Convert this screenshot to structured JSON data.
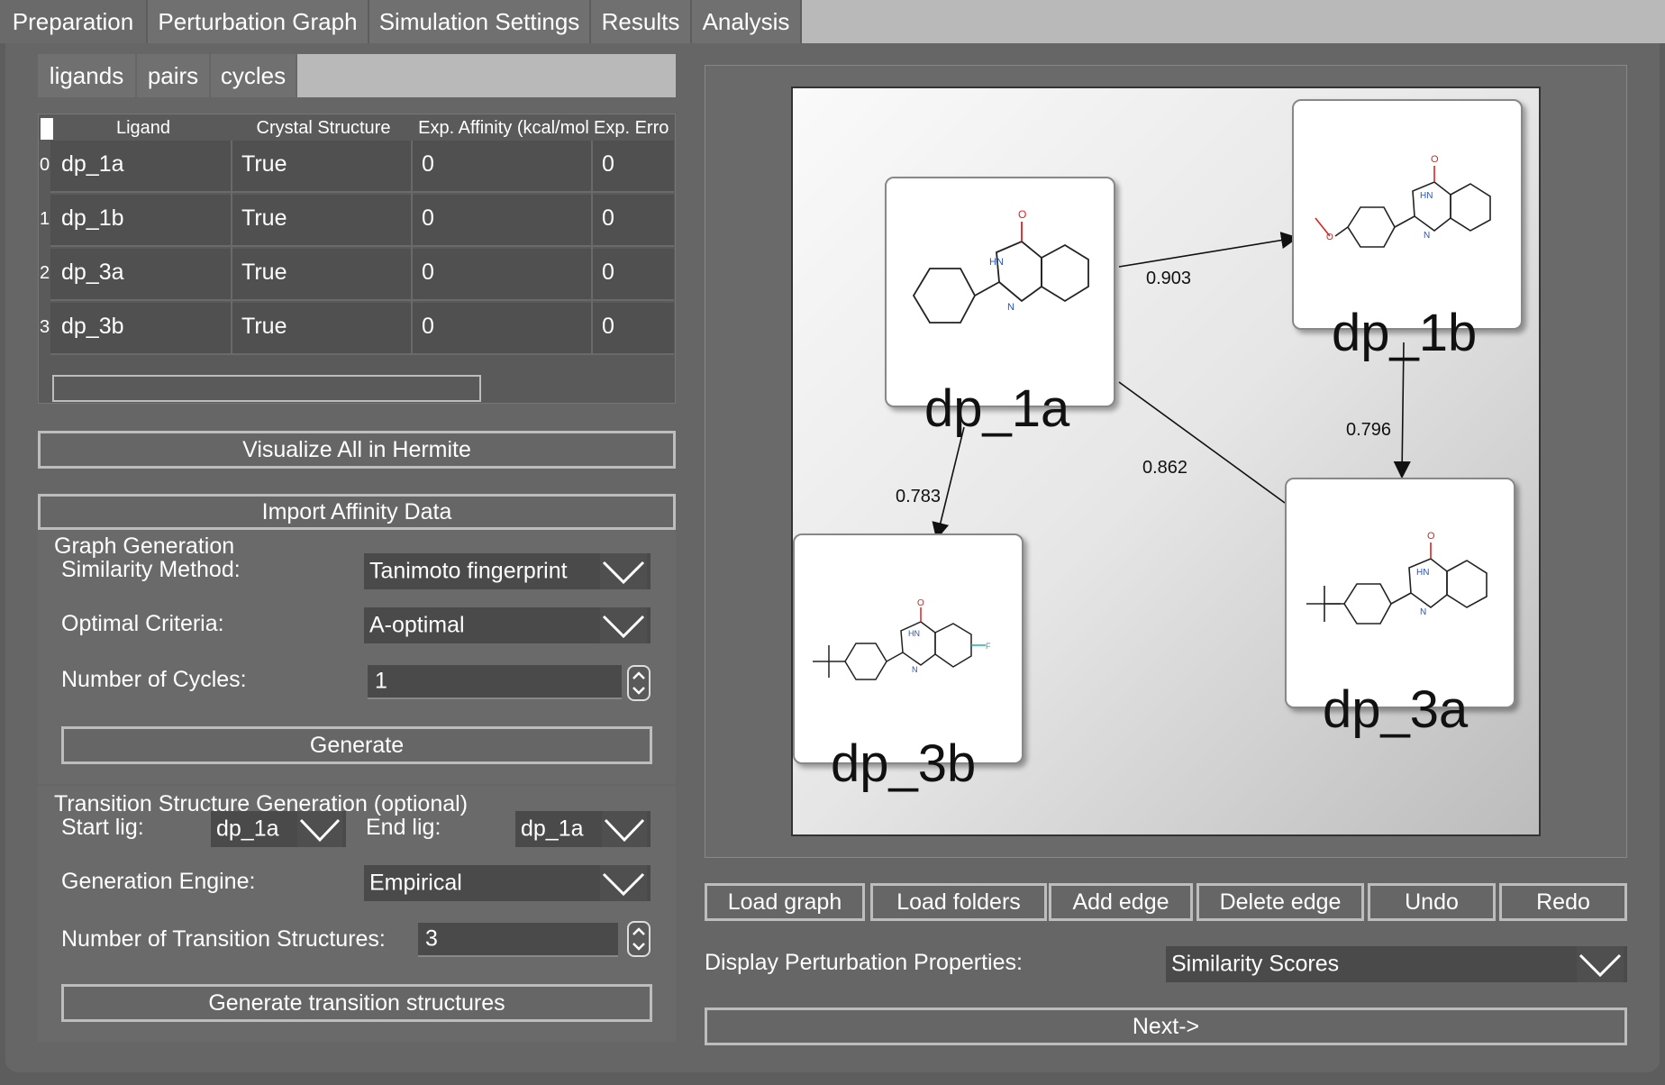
{
  "tabs": [
    "Preparation",
    "Perturbation Graph",
    "Simulation Settings",
    "Results",
    "Analysis"
  ],
  "subtabs": [
    "ligands",
    "pairs",
    "cycles"
  ],
  "table": {
    "headers": [
      "Ligand",
      "Crystal Structure",
      "Exp. Affinity (kcal/mol",
      "Exp. Erro"
    ],
    "rows": [
      {
        "index": "0",
        "ligand": "dp_1a",
        "crystal": "True",
        "affinity": "0",
        "error": "0"
      },
      {
        "index": "1",
        "ligand": "dp_1b",
        "crystal": "True",
        "affinity": "0",
        "error": "0"
      },
      {
        "index": "2",
        "ligand": "dp_3a",
        "crystal": "True",
        "affinity": "0",
        "error": "0"
      },
      {
        "index": "3",
        "ligand": "dp_3b",
        "crystal": "True",
        "affinity": "0",
        "error": "0"
      }
    ]
  },
  "buttons": {
    "visualize": "Visualize All in Hermite",
    "import": "Import Affinity Data",
    "generate": "Generate",
    "generate_ts": "Generate transition structures",
    "load_graph": "Load graph",
    "load_folders": "Load folders",
    "add_edge": "Add edge",
    "delete_edge": "Delete edge",
    "undo": "Undo",
    "redo": "Redo",
    "next": "Next->"
  },
  "graph_gen": {
    "title": "Graph Generation",
    "similarity_label": "Similarity Method:",
    "similarity_value": "Tanimoto fingerprint",
    "optimal_label": "Optimal Criteria:",
    "optimal_value": "A-optimal",
    "cycles_label": "Number of Cycles:",
    "cycles_value": "1"
  },
  "transition": {
    "title": "Transition Structure Generation (optional)",
    "start_label": "Start lig:",
    "start_value": "dp_1a",
    "end_label": "End lig:",
    "end_value": "dp_1a",
    "engine_label": "Generation Engine:",
    "engine_value": "Empirical",
    "count_label": "Number of Transition Structures:",
    "count_value": "3"
  },
  "graph": {
    "nodes": [
      "dp_1a",
      "dp_1b",
      "dp_3a",
      "dp_3b"
    ],
    "edges": [
      {
        "from": "dp_1a",
        "to": "dp_1b",
        "score": "0.903"
      },
      {
        "from": "dp_1b",
        "to": "dp_3a",
        "score": "0.796"
      },
      {
        "from": "dp_1a",
        "to": "dp_3a",
        "score": "0.862"
      },
      {
        "from": "dp_1a",
        "to": "dp_3b",
        "score": "0.783"
      }
    ]
  },
  "display": {
    "label": "Display Perturbation Properties:",
    "value": "Similarity Scores"
  }
}
